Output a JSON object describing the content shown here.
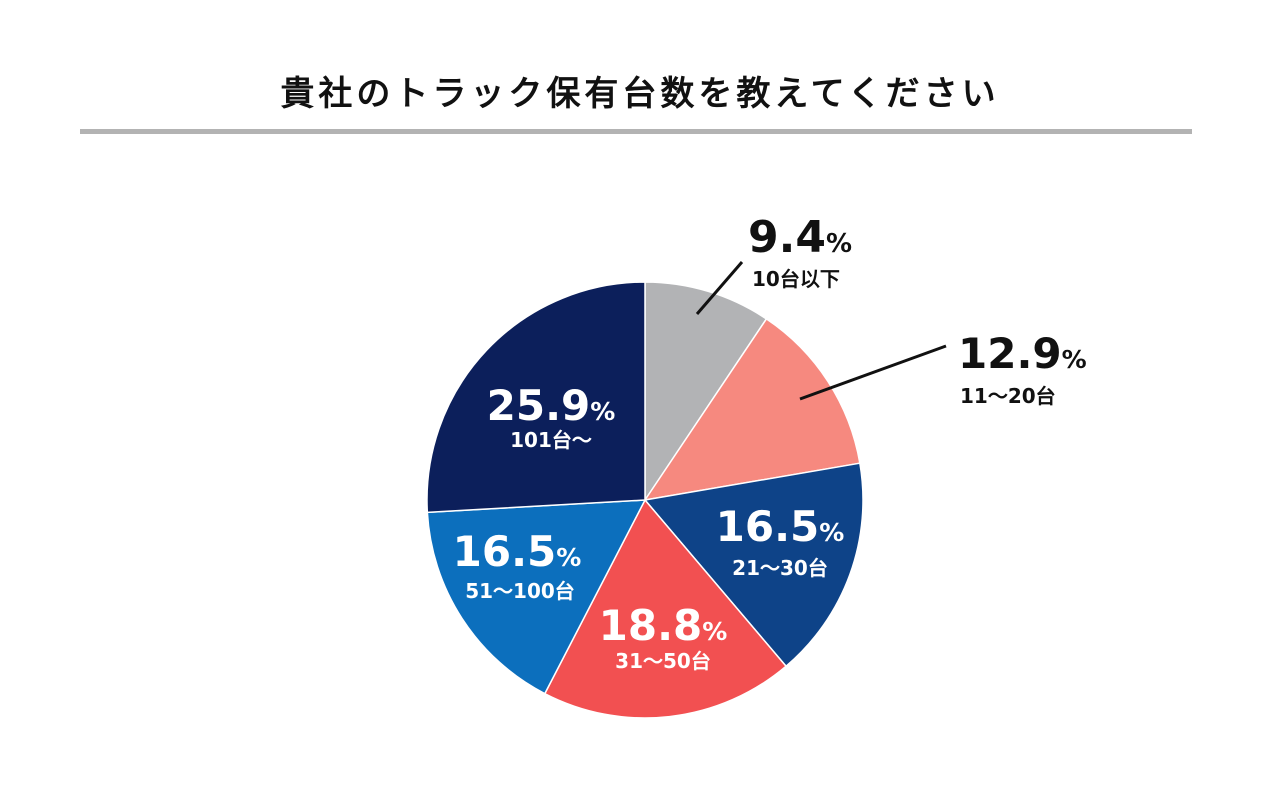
{
  "title": "貴社のトラック保有台数を教えてください",
  "chart_data": {
    "type": "pie",
    "title": "貴社のトラック保有台数を教えてください",
    "start": "12 o'clock, clockwise",
    "slices": [
      {
        "label": "10台以下",
        "value": 9.4,
        "value_text": "9.4",
        "unit": "%",
        "color": "#b2b3b5",
        "label_color": "#111111"
      },
      {
        "label": "11〜20台",
        "value": 12.9,
        "value_text": "12.9",
        "unit": "%",
        "color": "#f6897f",
        "label_color": "#111111"
      },
      {
        "label": "21〜30台",
        "value": 16.5,
        "value_text": "16.5",
        "unit": "%",
        "color": "#0e4388",
        "label_color": "#ffffff"
      },
      {
        "label": "31〜50台",
        "value": 18.8,
        "value_text": "18.8",
        "unit": "%",
        "color": "#f25051",
        "label_color": "#ffffff"
      },
      {
        "label": "51〜100台",
        "value": 16.5,
        "value_text": "16.5",
        "unit": "%",
        "color": "#0c6fbd",
        "label_color": "#ffffff"
      },
      {
        "label": "101台〜",
        "value": 25.9,
        "value_text": "25.9",
        "unit": "%",
        "color": "#0c1f5b",
        "label_color": "#ffffff"
      }
    ]
  }
}
